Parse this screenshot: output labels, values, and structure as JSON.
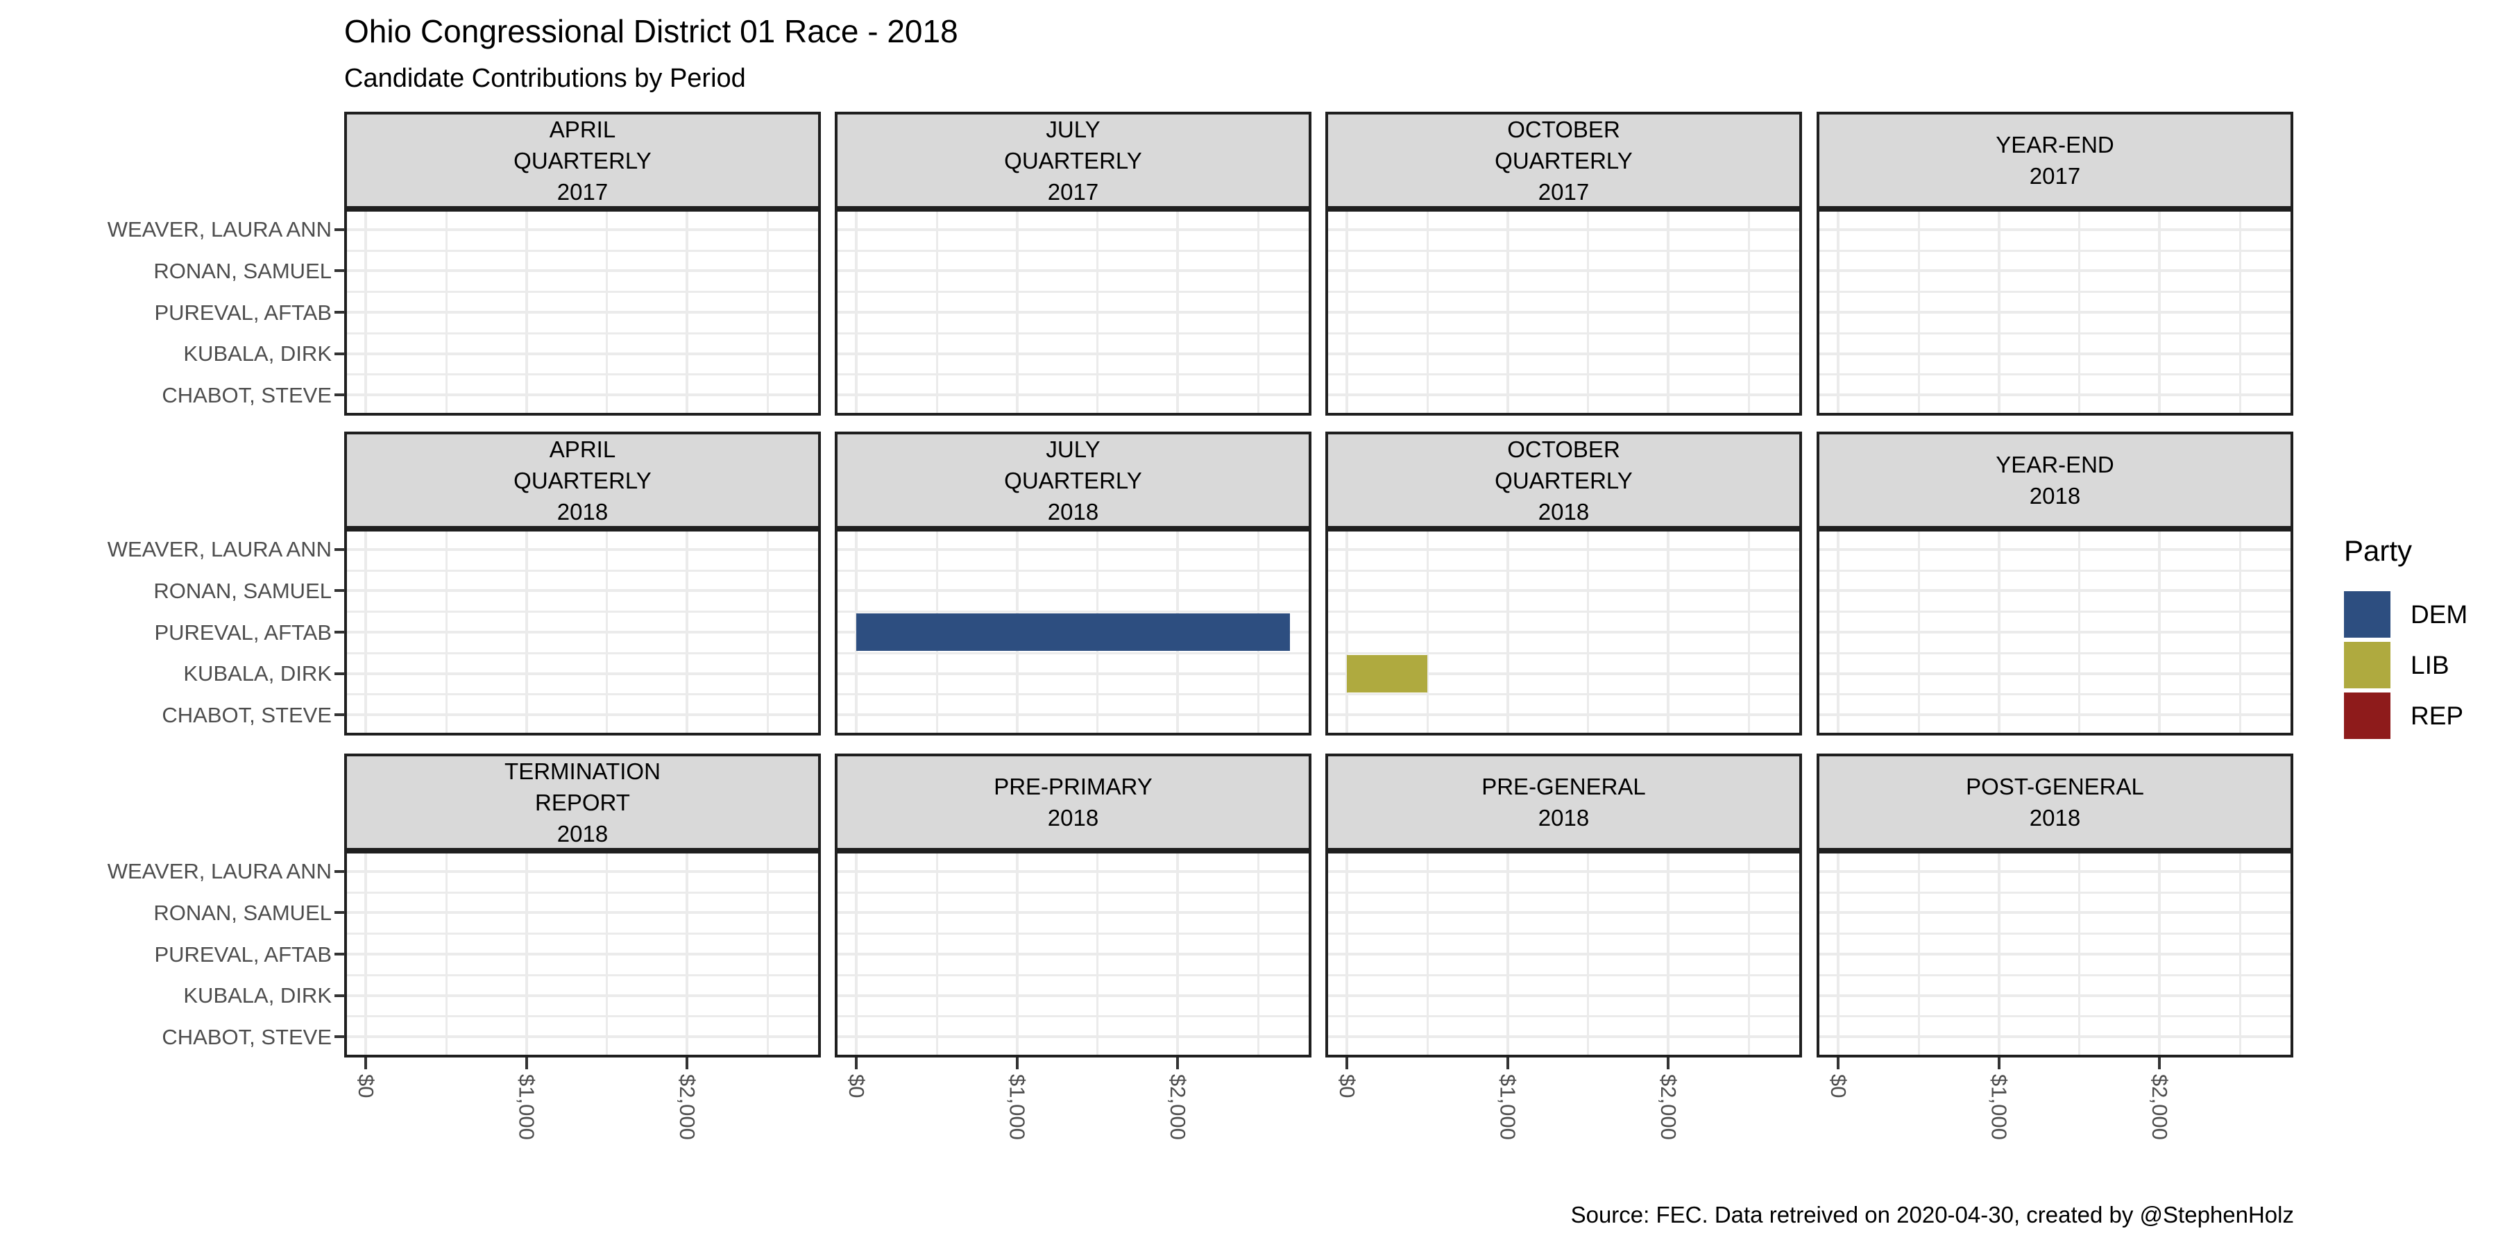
{
  "title": "Ohio Congressional District 01 Race - 2018",
  "subtitle": "Candidate Contributions by Period",
  "caption": "Source: FEC. Data retreived on 2020-04-30, created by @StephenHolz",
  "legend": {
    "title": "Party",
    "entries": [
      {
        "label": "DEM",
        "color": "#2D4E80"
      },
      {
        "label": "LIB",
        "color": "#AFAA3F"
      },
      {
        "label": "REP",
        "color": "#8E1B1B"
      }
    ]
  },
  "colors": {
    "strip_background": "#D9D9D9",
    "panel_border": "#1F1F1F",
    "gridline": "#EBEBEB",
    "axis_text": "#4D4D4D",
    "tick_mark": "#333333"
  },
  "chart_data": {
    "type": "bar",
    "orientation": "horizontal",
    "title": "Ohio Congressional District 01 Race - 2018",
    "subtitle": "Candidate Contributions by Period",
    "caption": "Source: FEC. Data retreived on 2020-04-30, created by @StephenHolz",
    "legend_title": "Party",
    "legend_position": "right",
    "grid": "major and minor, light gray on white",
    "candidates": [
      "WEAVER, LAURA ANN",
      "RONAN, SAMUEL",
      "PUREVAL, AFTAB",
      "KUBALA, DIRK",
      "CHABOT, STEVE"
    ],
    "x_range": [
      -135,
      2835
    ],
    "x_ticks": [
      {
        "label": "$0",
        "value": 0
      },
      {
        "label": "$1,000",
        "value": 1000
      },
      {
        "label": "$2,000",
        "value": 2000
      }
    ],
    "x_minor_breaks": [
      500,
      1500,
      2500
    ],
    "facet_grid": {
      "rows": 3,
      "cols": 4
    },
    "facets": [
      {
        "label": "APRIL\nQUARTERLY\n2017",
        "bars": []
      },
      {
        "label": "JULY\nQUARTERLY\n2017",
        "bars": []
      },
      {
        "label": "OCTOBER\nQUARTERLY\n2017",
        "bars": []
      },
      {
        "label": "YEAR-END\n2017",
        "bars": []
      },
      {
        "label": "APRIL\nQUARTERLY\n2018",
        "bars": []
      },
      {
        "label": "JULY\nQUARTERLY\n2018",
        "bars": [
          {
            "candidate": "PUREVAL, AFTAB",
            "party": "DEM",
            "value": 2700
          }
        ]
      },
      {
        "label": "OCTOBER\nQUARTERLY\n2018",
        "bars": [
          {
            "candidate": "KUBALA, DIRK",
            "party": "LIB",
            "value": 500
          }
        ]
      },
      {
        "label": "YEAR-END\n2018",
        "bars": []
      },
      {
        "label": "TERMINATION\nREPORT\n2018",
        "bars": []
      },
      {
        "label": "PRE-PRIMARY\n2018",
        "bars": []
      },
      {
        "label": "PRE-GENERAL\n2018",
        "bars": []
      },
      {
        "label": "POST-GENERAL\n2018",
        "bars": []
      }
    ]
  }
}
